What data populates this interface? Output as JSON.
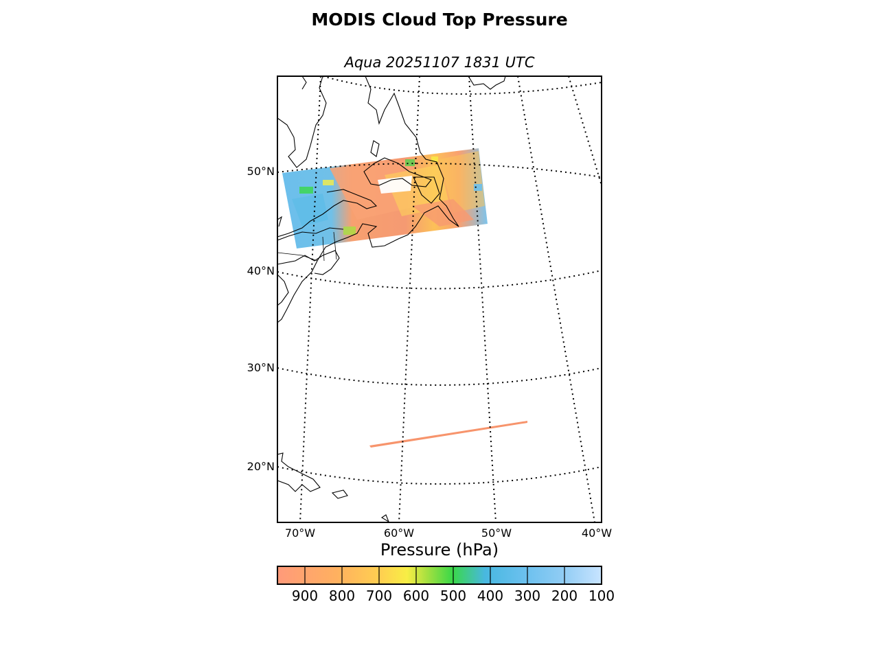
{
  "title": "MODIS Cloud Top Pressure",
  "subtitle": "Aqua 20251107 1831 UTC",
  "lat_labels": [
    "50°N",
    "40°N",
    "30°N",
    "20°N"
  ],
  "lon_labels": [
    "70°W",
    "60°W",
    "50°W",
    "40°W"
  ],
  "colorbar": {
    "title": "Pressure (hPa)",
    "ticks": [
      "900",
      "800",
      "700",
      "600",
      "500",
      "400",
      "300",
      "200",
      "100"
    ],
    "range": [
      975,
      100
    ],
    "colors": [
      "#ff9a7a",
      "#ffb060",
      "#ffd050",
      "#f8ee45",
      "#a8e040",
      "#3ad848",
      "#48b8e0",
      "#6ac0ee",
      "#90ccf4",
      "#c8e4ff"
    ]
  },
  "map": {
    "projection": "conic",
    "lon_range": [
      -72,
      -40
    ],
    "lat_range": [
      15,
      58
    ],
    "graticule": "dotted"
  }
}
